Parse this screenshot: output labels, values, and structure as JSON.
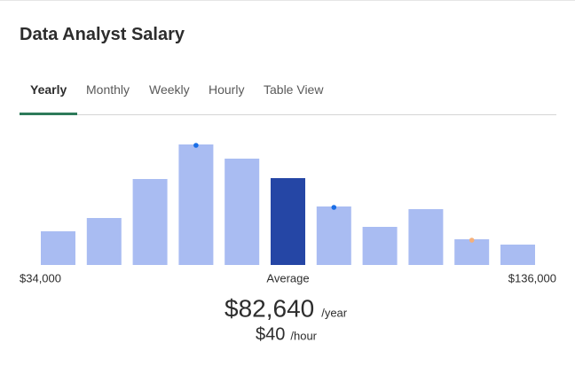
{
  "header": {
    "title": "Data Analyst Salary"
  },
  "tabs": {
    "items": [
      "Yearly",
      "Monthly",
      "Weekly",
      "Hourly",
      "Table View"
    ],
    "active": 0
  },
  "chart_data": {
    "type": "bar",
    "categories": [
      "$34,000",
      null,
      null,
      null,
      null,
      "Average",
      null,
      null,
      null,
      null,
      "$136,000"
    ],
    "values": [
      38,
      53,
      97,
      136,
      120,
      98,
      66,
      43,
      63,
      29,
      23
    ],
    "colors": [
      "#a9bcf2",
      "#a9bcf2",
      "#a9bcf2",
      "#a9bcf2",
      "#a9bcf2",
      "#2546a5",
      "#a9bcf2",
      "#a9bcf2",
      "#a9bcf2",
      "#a9bcf2",
      "#a9bcf2"
    ],
    "dot_colors": [
      null,
      null,
      null,
      "#1a6ee6",
      null,
      null,
      "#1a6ee6",
      null,
      null,
      "#f5b07a",
      null
    ],
    "ylim": [
      0,
      140
    ]
  },
  "summary": {
    "yearly": "$82,640",
    "yearly_unit": "/year",
    "hourly": "$40",
    "hourly_unit": "/hour"
  }
}
